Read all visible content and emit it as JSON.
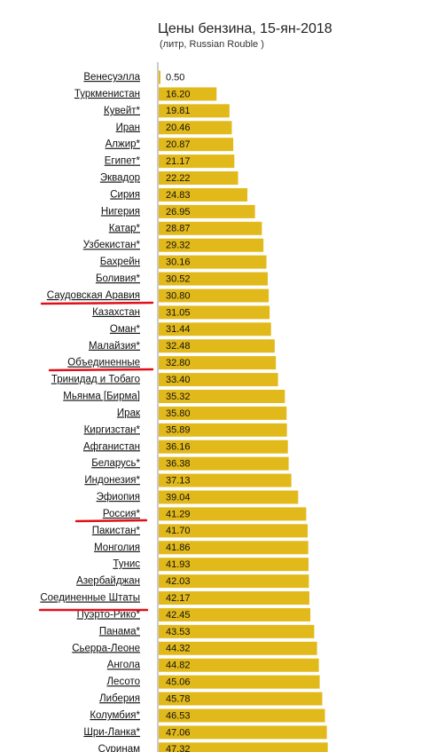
{
  "chart_data": {
    "type": "bar",
    "orientation": "horizontal",
    "title": "Цены бензина, 15-ян-2018",
    "subtitle": "(литр, Russian Rouble )",
    "color": "#e2b91b",
    "categories": [
      "Венесуэлла",
      "Туркменистан",
      "Кувейт*",
      "Иран",
      "Алжир*",
      "Египет*",
      "Эквадор",
      "Сирия",
      "Нигерия",
      "Катар*",
      "Узбекистан*",
      "Бахрейн",
      "Боливия*",
      "Саудовская Аравия",
      "Казахстан",
      "Оман*",
      "Малайзия*",
      "Объединенные",
      "Тринидад и Тобаго",
      "Мьянма [Бирма]",
      "Ирак",
      "Киргизстан*",
      "Афганистан",
      "Беларусь*",
      "Индонезия*",
      "Эфиопия",
      "Россия*",
      "Пакистан*",
      "Монголия",
      "Тунис",
      "Азербайджан",
      "Соединенные Штаты",
      "Пуэрто-Рико*",
      "Панама*",
      "Сьерра-Леоне",
      "Ангола",
      "Лесото",
      "Либерия",
      "Колумбия*",
      "Шри-Ланка*",
      "Суринам"
    ],
    "values": [
      0.5,
      16.2,
      19.81,
      20.46,
      20.87,
      21.17,
      22.22,
      24.83,
      26.95,
      28.87,
      29.32,
      30.16,
      30.52,
      30.8,
      31.05,
      31.44,
      32.48,
      32.8,
      33.4,
      35.32,
      35.8,
      35.89,
      36.16,
      36.38,
      37.13,
      39.04,
      41.29,
      41.7,
      41.86,
      41.93,
      42.03,
      42.17,
      42.45,
      43.53,
      44.32,
      44.82,
      45.06,
      45.78,
      46.53,
      47.06,
      47.32
    ],
    "value_labels": [
      "0.50",
      "16.20",
      "19.81",
      "20.46",
      "20.87",
      "21.17",
      "22.22",
      "24.83",
      "26.95",
      "28.87",
      "29.32",
      "30.16",
      "30.52",
      "30.80",
      "31.05",
      "31.44",
      "32.48",
      "32.80",
      "33.40",
      "35.32",
      "35.80",
      "35.89",
      "36.16",
      "36.38",
      "37.13",
      "39.04",
      "41.29",
      "41.70",
      "41.86",
      "41.93",
      "42.03",
      "42.17",
      "42.45",
      "43.53",
      "44.32",
      "44.82",
      "45.06",
      "45.78",
      "46.53",
      "47.06",
      "47.32"
    ]
  }
}
